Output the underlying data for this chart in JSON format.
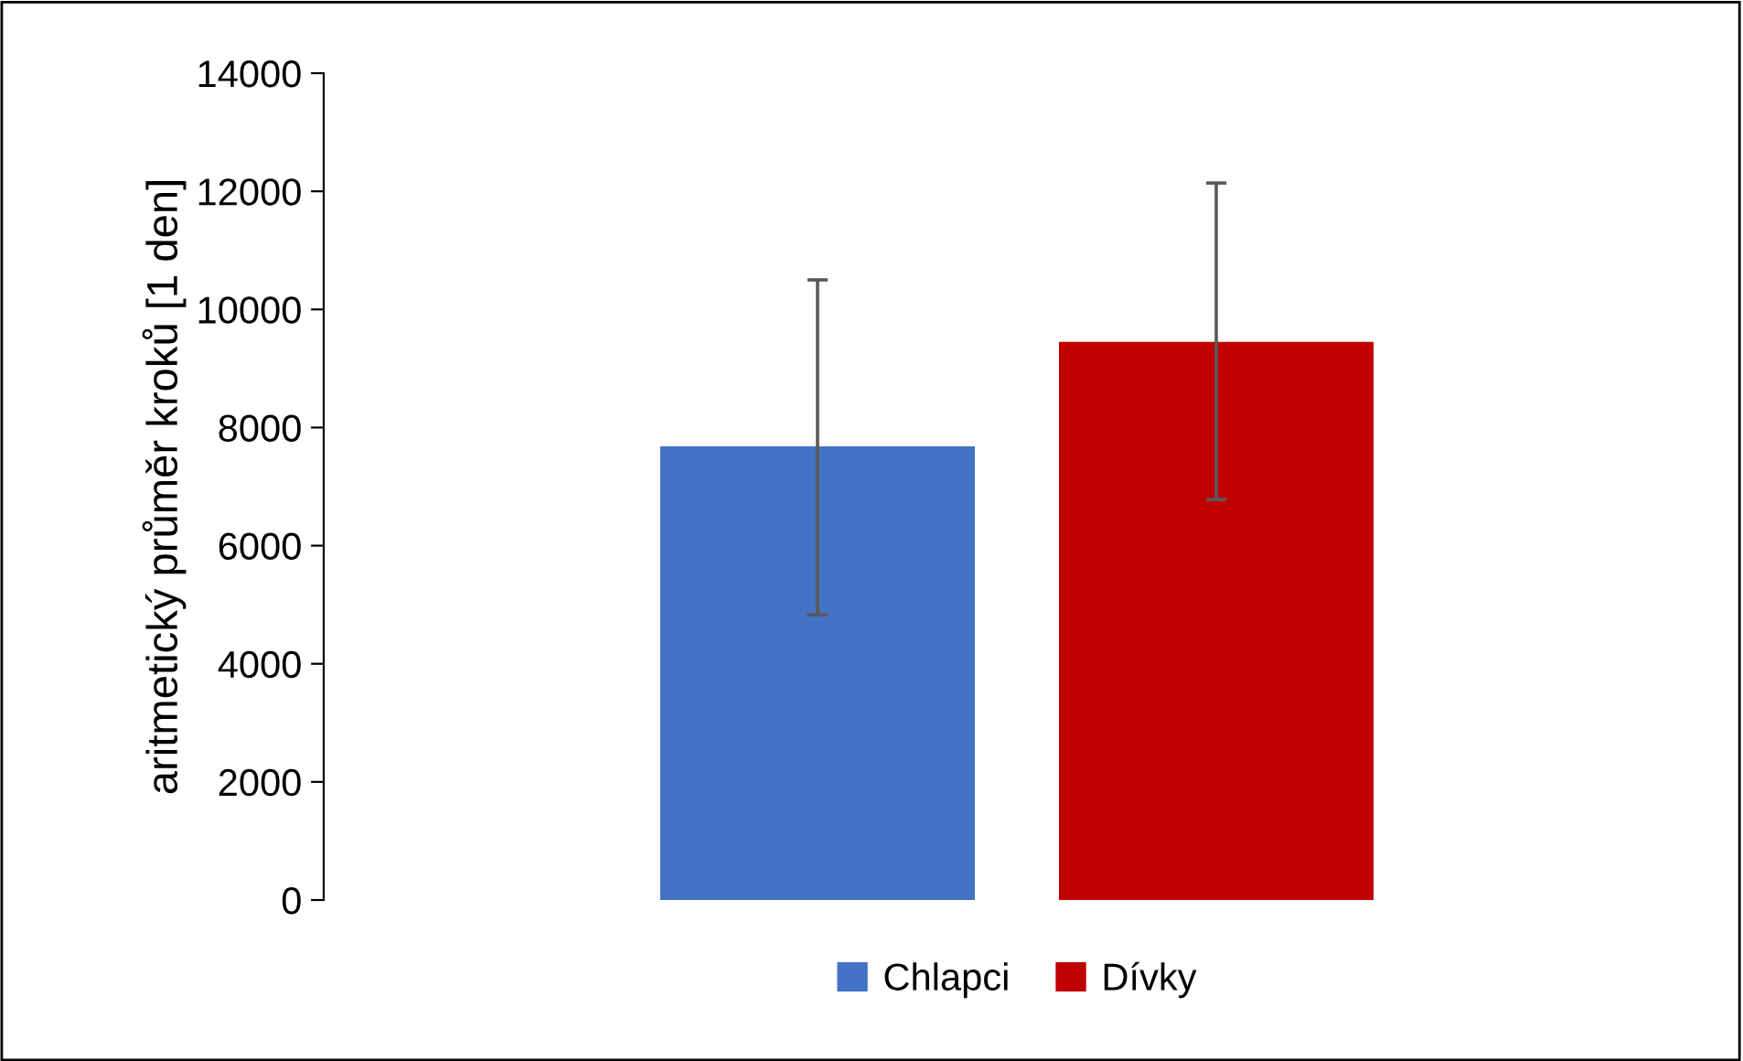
{
  "chart_data": {
    "type": "bar",
    "ylabel": "aritmetický průměr kroků [1 den]",
    "categories": [
      null
    ],
    "series": [
      {
        "name": "Chlapci",
        "color": "#4472c4",
        "values": [
          7680
        ],
        "errors": [
          [
            4830,
            10500
          ]
        ]
      },
      {
        "name": "Dívky",
        "color": "#c00000",
        "values": [
          9450
        ],
        "errors": [
          [
            6780,
            12140
          ]
        ]
      }
    ],
    "ylim": [
      0,
      14000
    ],
    "yticks": [
      0,
      2000,
      4000,
      6000,
      8000,
      10000,
      12000,
      14000
    ],
    "grid": false,
    "legend": "bottom"
  }
}
